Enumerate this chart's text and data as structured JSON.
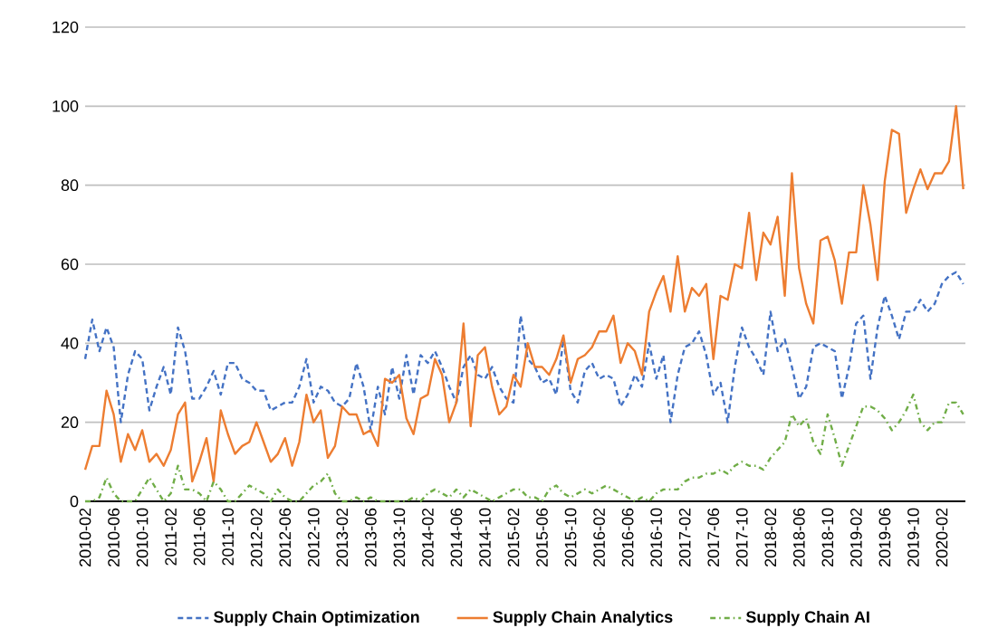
{
  "chart_data": {
    "type": "line",
    "xlim": [
      "2010-02",
      "2020-05"
    ],
    "xticks": [
      "2010-02",
      "2010-06",
      "2010-10",
      "2011-02",
      "2011-06",
      "2011-10",
      "2012-02",
      "2012-06",
      "2012-10",
      "2013-02",
      "2013-06",
      "2013-10",
      "2014-02",
      "2014-06",
      "2014-10",
      "2015-02",
      "2015-06",
      "2015-10",
      "2016-02",
      "2016-06",
      "2016-10",
      "2017-02",
      "2017-06",
      "2017-10",
      "2018-02",
      "2018-06",
      "2018-10",
      "2019-02",
      "2019-06",
      "2019-10",
      "2020-02"
    ],
    "ylim": [
      0,
      120
    ],
    "yticks": [
      0,
      20,
      40,
      60,
      80,
      100,
      120
    ],
    "grid": "y",
    "legend": "bottom",
    "series": [
      {
        "name": "Supply Chain Optimization",
        "color": "#4472c4",
        "line_style": "dashed",
        "values": [
          36,
          46,
          38,
          44,
          39,
          20,
          32,
          38,
          36,
          23,
          29,
          34,
          27,
          44,
          38,
          26,
          26,
          29,
          33,
          27,
          35,
          35,
          31,
          30,
          28,
          28,
          23,
          24,
          25,
          25,
          29,
          36,
          25,
          29,
          28,
          25,
          24,
          26,
          35,
          29,
          18,
          29,
          22,
          34,
          26,
          37,
          27,
          37,
          35,
          38,
          34,
          29,
          25,
          34,
          37,
          32,
          31,
          34,
          29,
          26,
          25,
          47,
          36,
          34,
          30,
          31,
          27,
          41,
          28,
          25,
          33,
          35,
          31,
          32,
          31,
          24,
          27,
          32,
          29,
          40,
          31,
          37,
          20,
          32,
          39,
          40,
          43,
          37,
          27,
          30,
          20,
          34,
          44,
          39,
          36,
          32,
          48,
          38,
          41,
          34,
          26,
          29,
          39,
          40,
          39,
          38,
          26,
          34,
          45,
          47,
          31,
          44,
          52,
          47,
          41,
          48,
          48,
          51,
          48,
          50,
          55,
          57,
          58,
          55
        ]
      },
      {
        "name": "Supply Chain Analytics",
        "color": "#ed7d31",
        "line_style": "solid",
        "values": [
          8,
          14,
          14,
          28,
          22,
          10,
          17,
          13,
          18,
          10,
          12,
          9,
          13,
          22,
          25,
          5,
          10,
          16,
          5,
          23,
          17,
          12,
          14,
          15,
          20,
          15,
          10,
          12,
          16,
          9,
          15,
          27,
          20,
          23,
          11,
          14,
          24,
          22,
          22,
          17,
          18,
          14,
          31,
          30,
          32,
          21,
          17,
          26,
          27,
          36,
          32,
          20,
          25,
          45,
          19,
          37,
          39,
          29,
          22,
          24,
          32,
          29,
          40,
          34,
          34,
          32,
          36,
          42,
          30,
          36,
          37,
          39,
          43,
          43,
          47,
          35,
          40,
          38,
          32,
          48,
          53,
          57,
          48,
          62,
          48,
          54,
          52,
          55,
          36,
          52,
          51,
          60,
          59,
          73,
          56,
          68,
          65,
          72,
          52,
          83,
          59,
          50,
          45,
          66,
          67,
          61,
          50,
          63,
          63,
          80,
          70,
          56,
          81,
          94,
          93,
          73,
          79,
          84,
          79,
          83,
          83,
          86,
          100,
          79
        ]
      },
      {
        "name": "Supply Chain AI",
        "color": "#70ad47",
        "line_style": "dashdot",
        "values": [
          0,
          0,
          1,
          6,
          2,
          0,
          0,
          0,
          3,
          6,
          3,
          0,
          2,
          9,
          3,
          3,
          2,
          0,
          5,
          3,
          0,
          0,
          2,
          4,
          3,
          2,
          0,
          3,
          1,
          0,
          0,
          2,
          4,
          5,
          7,
          2,
          0,
          0,
          1,
          0,
          1,
          0,
          0,
          0,
          0,
          0,
          1,
          0,
          2,
          3,
          2,
          1,
          3,
          1,
          3,
          2,
          1,
          0,
          1,
          2,
          3,
          3,
          1,
          1,
          0,
          3,
          4,
          2,
          1,
          2,
          3,
          2,
          3,
          4,
          3,
          2,
          1,
          0,
          1,
          0,
          2,
          3,
          3,
          3,
          5,
          6,
          6,
          7,
          7,
          8,
          7,
          9,
          10,
          9,
          9,
          8,
          11,
          13,
          15,
          22,
          19,
          21,
          15,
          12,
          22,
          16,
          9,
          14,
          19,
          24,
          24,
          23,
          21,
          18,
          20,
          23,
          27,
          20,
          18,
          20,
          20,
          25,
          25,
          22
        ]
      }
    ],
    "x": [
      "2010-02",
      "2010-03",
      "2010-04",
      "2010-05",
      "2010-06",
      "2010-07",
      "2010-08",
      "2010-09",
      "2010-10",
      "2010-11",
      "2010-12",
      "2011-01",
      "2011-02",
      "2011-03",
      "2011-04",
      "2011-05",
      "2011-06",
      "2011-07",
      "2011-08",
      "2011-09",
      "2011-10",
      "2011-11",
      "2011-12",
      "2012-01",
      "2012-02",
      "2012-03",
      "2012-04",
      "2012-05",
      "2012-06",
      "2012-07",
      "2012-08",
      "2012-09",
      "2012-10",
      "2012-11",
      "2012-12",
      "2013-01",
      "2013-02",
      "2013-03",
      "2013-04",
      "2013-05",
      "2013-06",
      "2013-07",
      "2013-08",
      "2013-09",
      "2013-10",
      "2013-11",
      "2013-12",
      "2014-01",
      "2014-02",
      "2014-03",
      "2014-04",
      "2014-05",
      "2014-06",
      "2014-07",
      "2014-08",
      "2014-09",
      "2014-10",
      "2014-11",
      "2014-12",
      "2015-01",
      "2015-02",
      "2015-03",
      "2015-04",
      "2015-05",
      "2015-06",
      "2015-07",
      "2015-08",
      "2015-09",
      "2015-10",
      "2015-11",
      "2015-12",
      "2016-01",
      "2016-02",
      "2016-03",
      "2016-04",
      "2016-05",
      "2016-06",
      "2016-07",
      "2016-08",
      "2016-09",
      "2016-10",
      "2016-11",
      "2016-12",
      "2017-01",
      "2017-02",
      "2017-03",
      "2017-04",
      "2017-05",
      "2017-06",
      "2017-07",
      "2017-08",
      "2017-09",
      "2017-10",
      "2017-11",
      "2017-12",
      "2018-01",
      "2018-02",
      "2018-03",
      "2018-04",
      "2018-05",
      "2018-06",
      "2018-07",
      "2018-08",
      "2018-09",
      "2018-10",
      "2018-11",
      "2018-12",
      "2019-01",
      "2019-02",
      "2019-03",
      "2019-04",
      "2019-05",
      "2019-06",
      "2019-07",
      "2019-08",
      "2019-09",
      "2019-10",
      "2019-11",
      "2019-12",
      "2020-01",
      "2020-02",
      "2020-03",
      "2020-04",
      "2020-05"
    ]
  }
}
